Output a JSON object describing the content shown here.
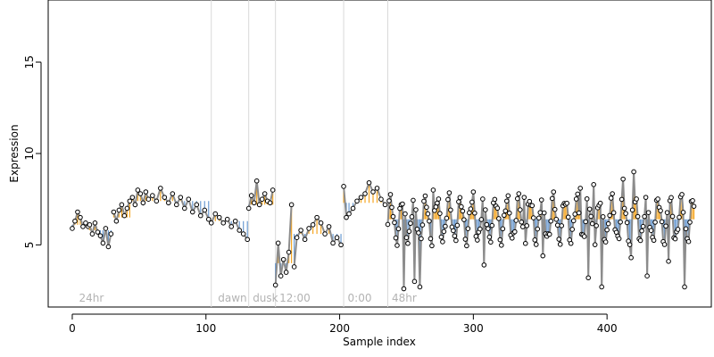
{
  "chart_data": {
    "type": "line",
    "xlabel": "Sample index",
    "ylabel": "Expression",
    "xlim": [
      -18,
      478
    ],
    "ylim": [
      1.6,
      18.4
    ],
    "x_ticks": [
      0,
      100,
      200,
      300,
      400
    ],
    "y_ticks": [
      5,
      10,
      15
    ],
    "grid": false,
    "colors": {
      "line": "#8c8c8c",
      "above": "#f5a623",
      "below": "#6b9bd2",
      "point_stroke": "#000000",
      "point_fill": "#ffffff",
      "phase_line": "#d9d9d9",
      "phase_text": "#b3b3b3"
    },
    "phase_markers": [
      {
        "x": 104,
        "label": ""
      },
      {
        "x": 132,
        "label": ""
      },
      {
        "x": 152,
        "label": ""
      },
      {
        "x": 203,
        "label": ""
      },
      {
        "x": 236,
        "label": ""
      }
    ],
    "phase_labels": [
      {
        "x": 3,
        "label": "24hr"
      },
      {
        "x": 107,
        "label": "dawn"
      },
      {
        "x": 133,
        "label": "dusk"
      },
      {
        "x": 153,
        "label": "12:00"
      },
      {
        "x": 204,
        "label": "0:00"
      },
      {
        "x": 237,
        "label": "48hr"
      }
    ],
    "segments": [
      {
        "x0": 0,
        "x1": 12,
        "base": 6.1,
        "points": [
          [
            0,
            5.9
          ],
          [
            2,
            6.3
          ],
          [
            4,
            6.8
          ],
          [
            6,
            6.5
          ],
          [
            8,
            6.0
          ],
          [
            10,
            6.2
          ],
          [
            12,
            6.0
          ]
        ]
      },
      {
        "x0": 13,
        "x1": 30,
        "base": 5.8,
        "points": [
          [
            13,
            6.1
          ],
          [
            15,
            5.6
          ],
          [
            17,
            6.2
          ],
          [
            19,
            5.7
          ],
          [
            21,
            5.5
          ],
          [
            23,
            5.1
          ],
          [
            25,
            5.9
          ],
          [
            27,
            4.9
          ],
          [
            29,
            5.6
          ]
        ]
      },
      {
        "x0": 31,
        "x1": 44,
        "base": 6.5,
        "points": [
          [
            31,
            6.8
          ],
          [
            33,
            6.3
          ],
          [
            35,
            6.9
          ],
          [
            37,
            7.2
          ],
          [
            39,
            6.6
          ],
          [
            41,
            7.0
          ],
          [
            43,
            7.4
          ]
        ]
      },
      {
        "x0": 45,
        "x1": 102,
        "base": 7.4,
        "points": [
          [
            45,
            7.6
          ],
          [
            47,
            7.2
          ],
          [
            49,
            8.0
          ],
          [
            51,
            7.8
          ],
          [
            53,
            7.3
          ],
          [
            55,
            7.9
          ],
          [
            57,
            7.5
          ],
          [
            60,
            7.7
          ],
          [
            63,
            7.4
          ],
          [
            66,
            8.1
          ],
          [
            69,
            7.6
          ],
          [
            72,
            7.3
          ],
          [
            75,
            7.8
          ],
          [
            78,
            7.2
          ],
          [
            81,
            7.6
          ],
          [
            84,
            7.0
          ],
          [
            87,
            7.5
          ],
          [
            90,
            6.8
          ],
          [
            93,
            7.2
          ],
          [
            96,
            6.6
          ],
          [
            99,
            6.9
          ],
          [
            102,
            6.4
          ]
        ]
      },
      {
        "x0": 104,
        "x1": 131,
        "base": 6.3,
        "points": [
          [
            104,
            6.2
          ],
          [
            107,
            6.7
          ],
          [
            110,
            6.5
          ],
          [
            113,
            6.2
          ],
          [
            116,
            6.4
          ],
          [
            119,
            6.0
          ],
          [
            122,
            6.3
          ],
          [
            125,
            5.8
          ],
          [
            128,
            5.6
          ],
          [
            131,
            5.3
          ]
        ]
      },
      {
        "x0": 132,
        "x1": 151,
        "base": 7.2,
        "points": [
          [
            132,
            7.0
          ],
          [
            134,
            7.7
          ],
          [
            136,
            7.3
          ],
          [
            138,
            8.5
          ],
          [
            140,
            7.2
          ],
          [
            142,
            7.5
          ],
          [
            144,
            7.8
          ],
          [
            146,
            7.4
          ],
          [
            148,
            7.3
          ],
          [
            150,
            8.0
          ]
        ]
      },
      {
        "x0": 152,
        "x1": 165,
        "base": 4.0,
        "points": [
          [
            152,
            2.8
          ],
          [
            154,
            5.1
          ],
          [
            156,
            3.3
          ],
          [
            158,
            4.2
          ],
          [
            160,
            3.5
          ],
          [
            162,
            4.6
          ],
          [
            164,
            7.2
          ]
        ]
      },
      {
        "x0": 166,
        "x1": 202,
        "base": 5.6,
        "points": [
          [
            166,
            3.8
          ],
          [
            168,
            5.4
          ],
          [
            171,
            5.8
          ],
          [
            174,
            5.3
          ],
          [
            177,
            5.9
          ],
          [
            180,
            6.1
          ],
          [
            183,
            6.5
          ],
          [
            186,
            6.2
          ],
          [
            189,
            5.6
          ],
          [
            192,
            6.0
          ],
          [
            195,
            5.1
          ],
          [
            198,
            5.4
          ],
          [
            201,
            5.0
          ]
        ]
      },
      {
        "x0": 203,
        "x1": 235,
        "base": 7.3,
        "points": [
          [
            203,
            8.2
          ],
          [
            205,
            6.5
          ],
          [
            207,
            6.7
          ],
          [
            210,
            7.0
          ],
          [
            213,
            7.4
          ],
          [
            216,
            7.6
          ],
          [
            219,
            7.8
          ],
          [
            222,
            8.4
          ],
          [
            225,
            7.9
          ],
          [
            228,
            8.1
          ],
          [
            231,
            7.5
          ],
          [
            234,
            7.2
          ]
        ]
      }
    ],
    "oscillation": {
      "x_start": 236,
      "x_end": 465,
      "x_step": 1,
      "base": 6.4,
      "period": 8.7,
      "amplitude": 1.15,
      "dip_x": [
        248,
        256,
        260,
        308,
        352,
        386,
        396,
        418,
        430,
        446,
        458
      ],
      "dip_y": [
        2.6,
        3.0,
        2.7,
        3.9,
        4.4,
        3.2,
        2.7,
        4.3,
        3.3,
        4.1,
        2.7
      ],
      "peak_x": [
        270,
        300,
        338,
        360,
        380,
        390,
        412,
        420
      ],
      "peak_y": [
        8.0,
        7.9,
        7.6,
        7.9,
        8.1,
        8.3,
        8.6,
        9.0
      ]
    }
  }
}
